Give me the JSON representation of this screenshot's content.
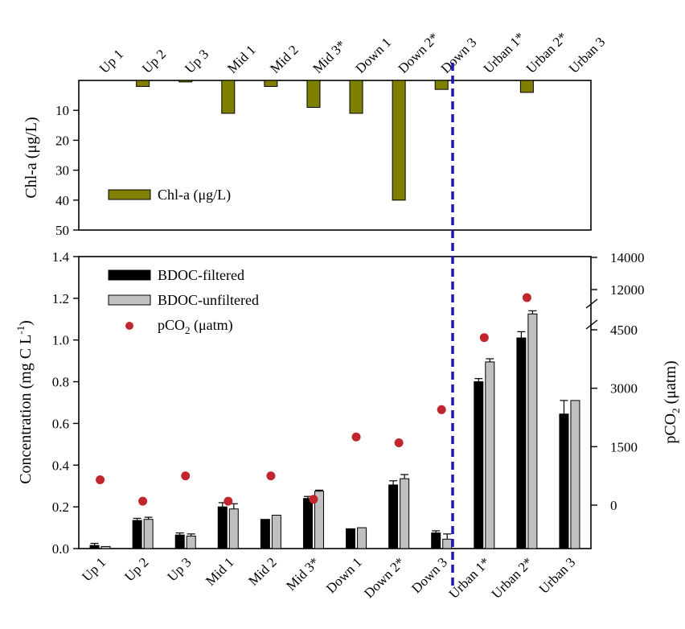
{
  "chart_data": [
    {
      "type": "bar",
      "panel": "top",
      "orientation": "inverted (0 at top, increasing downward)",
      "ylabel": "Chl-a (μg/L)",
      "ylim": [
        0,
        50
      ],
      "yticks": [
        "10",
        "20",
        "30",
        "40",
        "50"
      ],
      "categories": [
        "Up 1",
        "Up 2",
        "Up 3",
        "Mid 1",
        "Mid 2",
        "Mid 3*",
        "Down 1",
        "Down 2*",
        "Down 3",
        "Urban 1*",
        "Urban 2*",
        "Urban 3"
      ],
      "legend": {
        "label": "Chl-a (μg/L)",
        "position": "left"
      },
      "series": [
        {
          "name": "Chl-a (μg/L)",
          "color": "#808000",
          "values": [
            0,
            2,
            0.5,
            11,
            2,
            9,
            11,
            40,
            3,
            0,
            4,
            0
          ]
        }
      ]
    },
    {
      "type": "bar",
      "panel": "bottom",
      "ylabel": "Concentration (mg C L-1)",
      "ylabel_main": "Concentration (mg C L",
      "ylabel_sup": "-1",
      "ylabel_close": ")",
      "ylim": [
        0,
        1.4
      ],
      "yticks": [
        "0.0",
        "0.2",
        "0.4",
        "0.6",
        "0.8",
        "1.0",
        "1.2",
        "1.4"
      ],
      "y2label": "pCO2 (μatm)",
      "y2label_main": "pCO",
      "y2label_sub": "2",
      "y2label_rest": " (μatm)",
      "y2ticks": [
        "0",
        "1500",
        "3000",
        "4500",
        "12000",
        "14000"
      ],
      "y2_broken": true,
      "categories": [
        "Up 1",
        "Up 2",
        "Up 3",
        "Mid 1",
        "Mid 2",
        "Mid 3*",
        "Down 1",
        "Down 2*",
        "Down 3",
        "Urban 1*",
        "Urban 2*",
        "Urban 3"
      ],
      "series": [
        {
          "name": "BDOC-filtered",
          "color": "#000000",
          "values": [
            0.015,
            0.135,
            0.065,
            0.2,
            0.14,
            0.24,
            0.095,
            0.305,
            0.075,
            0.8,
            1.01,
            0.645
          ],
          "errors": [
            0.01,
            0.01,
            0.01,
            0.02,
            0.0,
            0.01,
            0.0,
            0.02,
            0.01,
            0.015,
            0.03,
            0.065
          ]
        },
        {
          "name": "BDOC-unfiltered",
          "color": "#c0c0c0",
          "values": [
            0.01,
            0.14,
            0.06,
            0.19,
            0.16,
            0.275,
            0.1,
            0.335,
            0.045,
            0.895,
            1.125,
            0.71
          ],
          "errors": [
            0.0,
            0.01,
            0.01,
            0.025,
            0.0,
            0.005,
            0.0,
            0.02,
            0.025,
            0.015,
            0.015,
            0.0
          ]
        },
        {
          "name": "pCO2 (μatm)",
          "name_main": "pCO",
          "name_sub": "2",
          "name_rest": " (μatm)",
          "type": "scatter",
          "color": "#c0262d",
          "values": [
            650,
            100,
            750,
            100,
            750,
            150,
            1750,
            1600,
            2450,
            4300,
            11500,
            null
          ]
        }
      ],
      "legend": {
        "position": "top-left"
      },
      "annotation": "dashed vertical line between Down 3 and Urban 1*",
      "annotation_color": "#1a1ab8"
    }
  ]
}
